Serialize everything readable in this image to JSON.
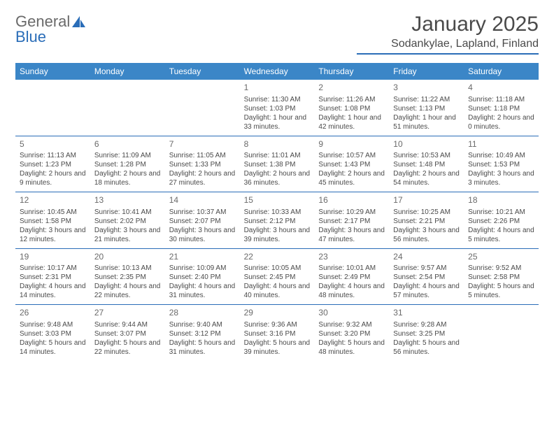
{
  "logo": {
    "word1": "General",
    "word2": "Blue"
  },
  "title": "January 2025",
  "location": "Sodankylae, Lapland, Finland",
  "colors": {
    "header_bg": "#3b86c7",
    "accent": "#2a6db8",
    "text": "#4a4a4a",
    "light_text": "#6a6a6a"
  },
  "dayNames": [
    "Sunday",
    "Monday",
    "Tuesday",
    "Wednesday",
    "Thursday",
    "Friday",
    "Saturday"
  ],
  "weeks": [
    [
      null,
      null,
      null,
      {
        "n": "1",
        "sr": "Sunrise: 11:30 AM",
        "ss": "Sunset: 1:03 PM",
        "dl": "Daylight: 1 hour and 33 minutes."
      },
      {
        "n": "2",
        "sr": "Sunrise: 11:26 AM",
        "ss": "Sunset: 1:08 PM",
        "dl": "Daylight: 1 hour and 42 minutes."
      },
      {
        "n": "3",
        "sr": "Sunrise: 11:22 AM",
        "ss": "Sunset: 1:13 PM",
        "dl": "Daylight: 1 hour and 51 minutes."
      },
      {
        "n": "4",
        "sr": "Sunrise: 11:18 AM",
        "ss": "Sunset: 1:18 PM",
        "dl": "Daylight: 2 hours and 0 minutes."
      }
    ],
    [
      {
        "n": "5",
        "sr": "Sunrise: 11:13 AM",
        "ss": "Sunset: 1:23 PM",
        "dl": "Daylight: 2 hours and 9 minutes."
      },
      {
        "n": "6",
        "sr": "Sunrise: 11:09 AM",
        "ss": "Sunset: 1:28 PM",
        "dl": "Daylight: 2 hours and 18 minutes."
      },
      {
        "n": "7",
        "sr": "Sunrise: 11:05 AM",
        "ss": "Sunset: 1:33 PM",
        "dl": "Daylight: 2 hours and 27 minutes."
      },
      {
        "n": "8",
        "sr": "Sunrise: 11:01 AM",
        "ss": "Sunset: 1:38 PM",
        "dl": "Daylight: 2 hours and 36 minutes."
      },
      {
        "n": "9",
        "sr": "Sunrise: 10:57 AM",
        "ss": "Sunset: 1:43 PM",
        "dl": "Daylight: 2 hours and 45 minutes."
      },
      {
        "n": "10",
        "sr": "Sunrise: 10:53 AM",
        "ss": "Sunset: 1:48 PM",
        "dl": "Daylight: 2 hours and 54 minutes."
      },
      {
        "n": "11",
        "sr": "Sunrise: 10:49 AM",
        "ss": "Sunset: 1:53 PM",
        "dl": "Daylight: 3 hours and 3 minutes."
      }
    ],
    [
      {
        "n": "12",
        "sr": "Sunrise: 10:45 AM",
        "ss": "Sunset: 1:58 PM",
        "dl": "Daylight: 3 hours and 12 minutes."
      },
      {
        "n": "13",
        "sr": "Sunrise: 10:41 AM",
        "ss": "Sunset: 2:02 PM",
        "dl": "Daylight: 3 hours and 21 minutes."
      },
      {
        "n": "14",
        "sr": "Sunrise: 10:37 AM",
        "ss": "Sunset: 2:07 PM",
        "dl": "Daylight: 3 hours and 30 minutes."
      },
      {
        "n": "15",
        "sr": "Sunrise: 10:33 AM",
        "ss": "Sunset: 2:12 PM",
        "dl": "Daylight: 3 hours and 39 minutes."
      },
      {
        "n": "16",
        "sr": "Sunrise: 10:29 AM",
        "ss": "Sunset: 2:17 PM",
        "dl": "Daylight: 3 hours and 47 minutes."
      },
      {
        "n": "17",
        "sr": "Sunrise: 10:25 AM",
        "ss": "Sunset: 2:21 PM",
        "dl": "Daylight: 3 hours and 56 minutes."
      },
      {
        "n": "18",
        "sr": "Sunrise: 10:21 AM",
        "ss": "Sunset: 2:26 PM",
        "dl": "Daylight: 4 hours and 5 minutes."
      }
    ],
    [
      {
        "n": "19",
        "sr": "Sunrise: 10:17 AM",
        "ss": "Sunset: 2:31 PM",
        "dl": "Daylight: 4 hours and 14 minutes."
      },
      {
        "n": "20",
        "sr": "Sunrise: 10:13 AM",
        "ss": "Sunset: 2:35 PM",
        "dl": "Daylight: 4 hours and 22 minutes."
      },
      {
        "n": "21",
        "sr": "Sunrise: 10:09 AM",
        "ss": "Sunset: 2:40 PM",
        "dl": "Daylight: 4 hours and 31 minutes."
      },
      {
        "n": "22",
        "sr": "Sunrise: 10:05 AM",
        "ss": "Sunset: 2:45 PM",
        "dl": "Daylight: 4 hours and 40 minutes."
      },
      {
        "n": "23",
        "sr": "Sunrise: 10:01 AM",
        "ss": "Sunset: 2:49 PM",
        "dl": "Daylight: 4 hours and 48 minutes."
      },
      {
        "n": "24",
        "sr": "Sunrise: 9:57 AM",
        "ss": "Sunset: 2:54 PM",
        "dl": "Daylight: 4 hours and 57 minutes."
      },
      {
        "n": "25",
        "sr": "Sunrise: 9:52 AM",
        "ss": "Sunset: 2:58 PM",
        "dl": "Daylight: 5 hours and 5 minutes."
      }
    ],
    [
      {
        "n": "26",
        "sr": "Sunrise: 9:48 AM",
        "ss": "Sunset: 3:03 PM",
        "dl": "Daylight: 5 hours and 14 minutes."
      },
      {
        "n": "27",
        "sr": "Sunrise: 9:44 AM",
        "ss": "Sunset: 3:07 PM",
        "dl": "Daylight: 5 hours and 22 minutes."
      },
      {
        "n": "28",
        "sr": "Sunrise: 9:40 AM",
        "ss": "Sunset: 3:12 PM",
        "dl": "Daylight: 5 hours and 31 minutes."
      },
      {
        "n": "29",
        "sr": "Sunrise: 9:36 AM",
        "ss": "Sunset: 3:16 PM",
        "dl": "Daylight: 5 hours and 39 minutes."
      },
      {
        "n": "30",
        "sr": "Sunrise: 9:32 AM",
        "ss": "Sunset: 3:20 PM",
        "dl": "Daylight: 5 hours and 48 minutes."
      },
      {
        "n": "31",
        "sr": "Sunrise: 9:28 AM",
        "ss": "Sunset: 3:25 PM",
        "dl": "Daylight: 5 hours and 56 minutes."
      },
      null
    ]
  ]
}
